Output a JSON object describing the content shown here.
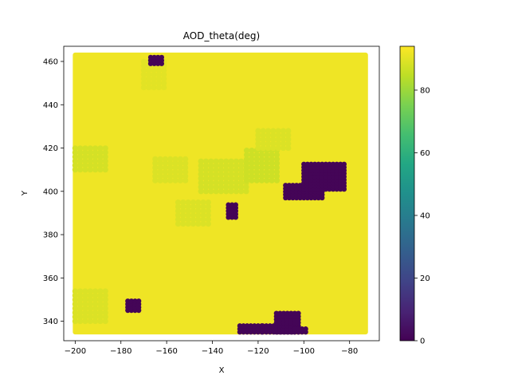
{
  "chart_data": {
    "type": "scatter",
    "title": "AOD_theta(deg)",
    "xlabel": "X",
    "ylabel": "Y",
    "xlim": [
      -205,
      -67
    ],
    "ylim": [
      331,
      467
    ],
    "xticks": [
      -200,
      -180,
      -160,
      -140,
      -120,
      -100,
      -80
    ],
    "yticks": [
      340,
      360,
      380,
      400,
      420,
      440,
      460
    ],
    "colorbar": {
      "colormap": "viridis",
      "vmin": 0,
      "vmax": 94,
      "ticks": [
        0,
        20,
        40,
        60,
        80
      ]
    },
    "background_value": 92,
    "field_extent": {
      "x": [
        -200,
        -73
      ],
      "y": [
        335,
        463
      ]
    },
    "marker_color_high": "#ece51b",
    "marker_color_low": "#440154",
    "low_value_regions": [
      {
        "x": [
          -167,
          -162
        ],
        "y": [
          459,
          463
        ],
        "value": 1
      },
      {
        "x": [
          -108,
          -92
        ],
        "y": [
          397,
          404
        ],
        "value": 1
      },
      {
        "x": [
          -100,
          -82
        ],
        "y": [
          401,
          413
        ],
        "value": 1
      },
      {
        "x": [
          -133,
          -129
        ],
        "y": [
          388,
          394
        ],
        "value": 1
      },
      {
        "x": [
          -177,
          -171
        ],
        "y": [
          345,
          350
        ],
        "value": 1
      },
      {
        "x": [
          -128,
          -118
        ],
        "y": [
          335,
          339
        ],
        "value": 1
      },
      {
        "x": [
          -118,
          -104
        ],
        "y": [
          335,
          339
        ],
        "value": 1
      },
      {
        "x": [
          -112,
          -102
        ],
        "y": [
          335,
          345
        ],
        "value": 1
      },
      {
        "x": [
          -104,
          -98
        ],
        "y": [
          335,
          337
        ],
        "value": 1
      }
    ],
    "variation_patches": [
      {
        "x": [
          -200,
          -185
        ],
        "y": [
          410,
          420
        ],
        "value": 88
      },
      {
        "x": [
          -165,
          -150
        ],
        "y": [
          405,
          415
        ],
        "value": 89
      },
      {
        "x": [
          -145,
          -125
        ],
        "y": [
          400,
          415
        ],
        "value": 88
      },
      {
        "x": [
          -125,
          -110
        ],
        "y": [
          405,
          420
        ],
        "value": 87
      },
      {
        "x": [
          -155,
          -140
        ],
        "y": [
          385,
          395
        ],
        "value": 89
      },
      {
        "x": [
          -200,
          -185
        ],
        "y": [
          340,
          355
        ],
        "value": 89
      },
      {
        "x": [
          -170,
          -160
        ],
        "y": [
          448,
          460
        ],
        "value": 90
      },
      {
        "x": [
          -120,
          -105
        ],
        "y": [
          420,
          428
        ],
        "value": 89
      }
    ]
  }
}
